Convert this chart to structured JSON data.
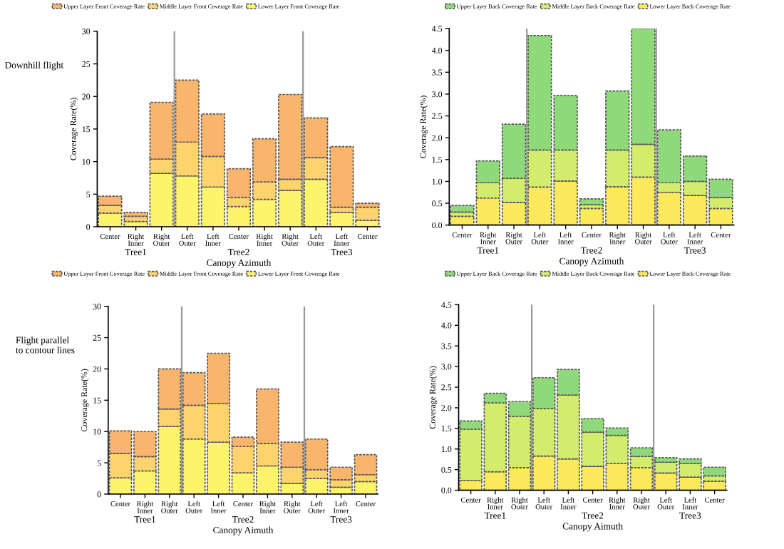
{
  "chart_data": [
    {
      "type": "bar",
      "stacked": true,
      "xlabel": "Canopy Azimuth",
      "ylabel": "Coverage Rate(%)",
      "legend": "top",
      "grid": false,
      "categories": [
        "Center",
        "Right\nInner",
        "Right\nOuter",
        "Left\nOuter",
        "Left\nInner",
        "Center",
        "Right\nInner",
        "Right\nOuter",
        "Left\nOuter",
        "Left\nInner",
        "Center"
      ],
      "ylim": [
        0,
        30
      ],
      "yticks": [
        0,
        5,
        10,
        15,
        20,
        25,
        30
      ],
      "annotations": [
        "Tree1",
        "Tree2",
        "Tree3",
        "Downhill flight"
      ],
      "series": [
        {
          "name": "Lower Layer Front Coverage Rate",
          "color": "#fdf46c",
          "values": [
            2.1,
            0.8,
            8.2,
            7.8,
            6.1,
            3.1,
            4.2,
            5.6,
            7.3,
            2.2,
            1.0
          ]
        },
        {
          "name": "Middle Layer Front Coverage Rate",
          "color": "#fcd36c",
          "values": [
            1.2,
            0.8,
            2.2,
            5.2,
            4.7,
            1.4,
            2.7,
            1.7,
            3.3,
            0.8,
            2.0
          ]
        },
        {
          "name": "Upper Layer Front Coverage Rate",
          "color": "#f9b56b",
          "values": [
            1.4,
            0.6,
            8.7,
            9.5,
            6.5,
            4.4,
            6.6,
            13.0,
            6.1,
            9.3,
            0.6
          ]
        }
      ]
    },
    {
      "type": "bar",
      "stacked": true,
      "xlabel": "Canopy Azimuth",
      "ylabel": "Coverage Rate(%)",
      "legend": "top",
      "grid": false,
      "categories": [
        "Center",
        "Right\nInner",
        "Right\nOuter",
        "Left\nOuter",
        "Left\nInner",
        "Center",
        "Right\nInner",
        "Right\nOuter",
        "Left\nOuter",
        "Left\nInner",
        "Center"
      ],
      "ylim": [
        0,
        4.5
      ],
      "yticks": [
        {
          "value": 0,
          "label": "0.0"
        },
        0.5,
        {
          "value": 1,
          "label": "1.0"
        },
        1.5,
        {
          "value": 2,
          "label": "2.0"
        },
        2.5,
        {
          "value": 3,
          "label": "3.0"
        },
        3.5,
        {
          "value": 4,
          "label": "4.0"
        },
        4.5
      ],
      "annotations": [
        "Tree1",
        "Tree2",
        "Tree3"
      ],
      "series": [
        {
          "name": "Lower Layer Back Coverage Rate",
          "color": "#fde95c",
          "values": [
            0.2,
            0.62,
            0.52,
            0.87,
            1.01,
            0.38,
            0.88,
            1.1,
            0.75,
            0.68,
            0.38
          ]
        },
        {
          "name": "Middle Layer Back Coverage Rate",
          "color": "#d3ec6b",
          "values": [
            0.1,
            0.35,
            0.55,
            0.85,
            0.71,
            0.09,
            0.84,
            0.75,
            0.22,
            0.32,
            0.25
          ]
        },
        {
          "name": "Upper Layer Back Coverage Rate",
          "color": "#8fd97b",
          "values": [
            0.15,
            0.5,
            1.24,
            2.62,
            1.25,
            0.13,
            1.35,
            2.65,
            1.21,
            0.58,
            0.42
          ]
        }
      ]
    },
    {
      "type": "bar",
      "stacked": true,
      "xlabel": "Canopy Aimuth",
      "ylabel": "Coverage Rate(%)",
      "legend": "top",
      "grid": false,
      "categories": [
        "Center",
        "Right\nInner",
        "Right\nOuter",
        "Left\nOuter",
        "Left\nInner",
        "Center",
        "Right\nInner",
        "Right\nOuter",
        "Left\nOuter",
        "Left\nInner",
        "Center"
      ],
      "ylim": [
        0,
        30
      ],
      "yticks": [
        0,
        5,
        10,
        15,
        20,
        25,
        30
      ],
      "annotations": [
        "Tree1",
        "Tree2",
        "Tree3",
        "Flight parallel\nto contour lines"
      ],
      "series": [
        {
          "name": "Lower Layer Front Coverage Rate",
          "color": "#fdf46c",
          "values": [
            2.6,
            3.7,
            10.8,
            8.8,
            8.3,
            3.4,
            4.5,
            1.7,
            2.5,
            1.1,
            2.0
          ]
        },
        {
          "name": "Middle Layer Front Coverage Rate",
          "color": "#fcd36c",
          "values": [
            3.9,
            2.3,
            2.8,
            5.4,
            6.2,
            4.2,
            3.6,
            2.6,
            1.4,
            1.2,
            1.1
          ]
        },
        {
          "name": "Upper Layer Front Coverage Rate",
          "color": "#f9b56b",
          "values": [
            3.6,
            4.0,
            6.4,
            5.2,
            8.0,
            1.5,
            8.7,
            4.0,
            4.9,
            2.0,
            3.2
          ]
        }
      ]
    },
    {
      "type": "bar",
      "stacked": true,
      "xlabel": "Canopy Aimuth",
      "ylabel": "Coverage Rate(%)",
      "legend": "top",
      "grid": false,
      "categories": [
        "Center",
        "Right\nInner",
        "Right\nOuter",
        "Left\nOuter",
        "Left\nInner",
        "Center",
        "Right\nInner",
        "Right\nOuter",
        "Left\nOuter",
        "Left\nInner",
        "Center"
      ],
      "ylim": [
        0,
        4.5
      ],
      "yticks": [
        {
          "value": 0,
          "label": "0.0"
        },
        0.5,
        {
          "value": 1,
          "label": "1.0"
        },
        1.5,
        {
          "value": 2,
          "label": "2.0"
        },
        2.5,
        {
          "value": 3,
          "label": "3.0"
        },
        3.5,
        {
          "value": 4,
          "label": "4.0"
        },
        4.5
      ],
      "annotations": [
        "Tree1",
        "Tree2",
        "Tree3"
      ],
      "series": [
        {
          "name": "Lower Layer Back Coverage Rate",
          "color": "#fde95c",
          "values": [
            0.24,
            0.45,
            0.55,
            0.83,
            0.76,
            0.58,
            0.65,
            0.55,
            0.42,
            0.32,
            0.22
          ]
        },
        {
          "name": "Middle Layer Back Coverage Rate",
          "color": "#d3ec6b",
          "values": [
            1.24,
            1.67,
            1.24,
            1.15,
            1.55,
            0.83,
            0.68,
            0.27,
            0.26,
            0.33,
            0.13
          ]
        },
        {
          "name": "Upper Layer Back Coverage Rate",
          "color": "#8fd97b",
          "values": [
            0.2,
            0.23,
            0.36,
            0.75,
            0.62,
            0.33,
            0.18,
            0.21,
            0.11,
            0.11,
            0.21
          ]
        }
      ]
    }
  ]
}
